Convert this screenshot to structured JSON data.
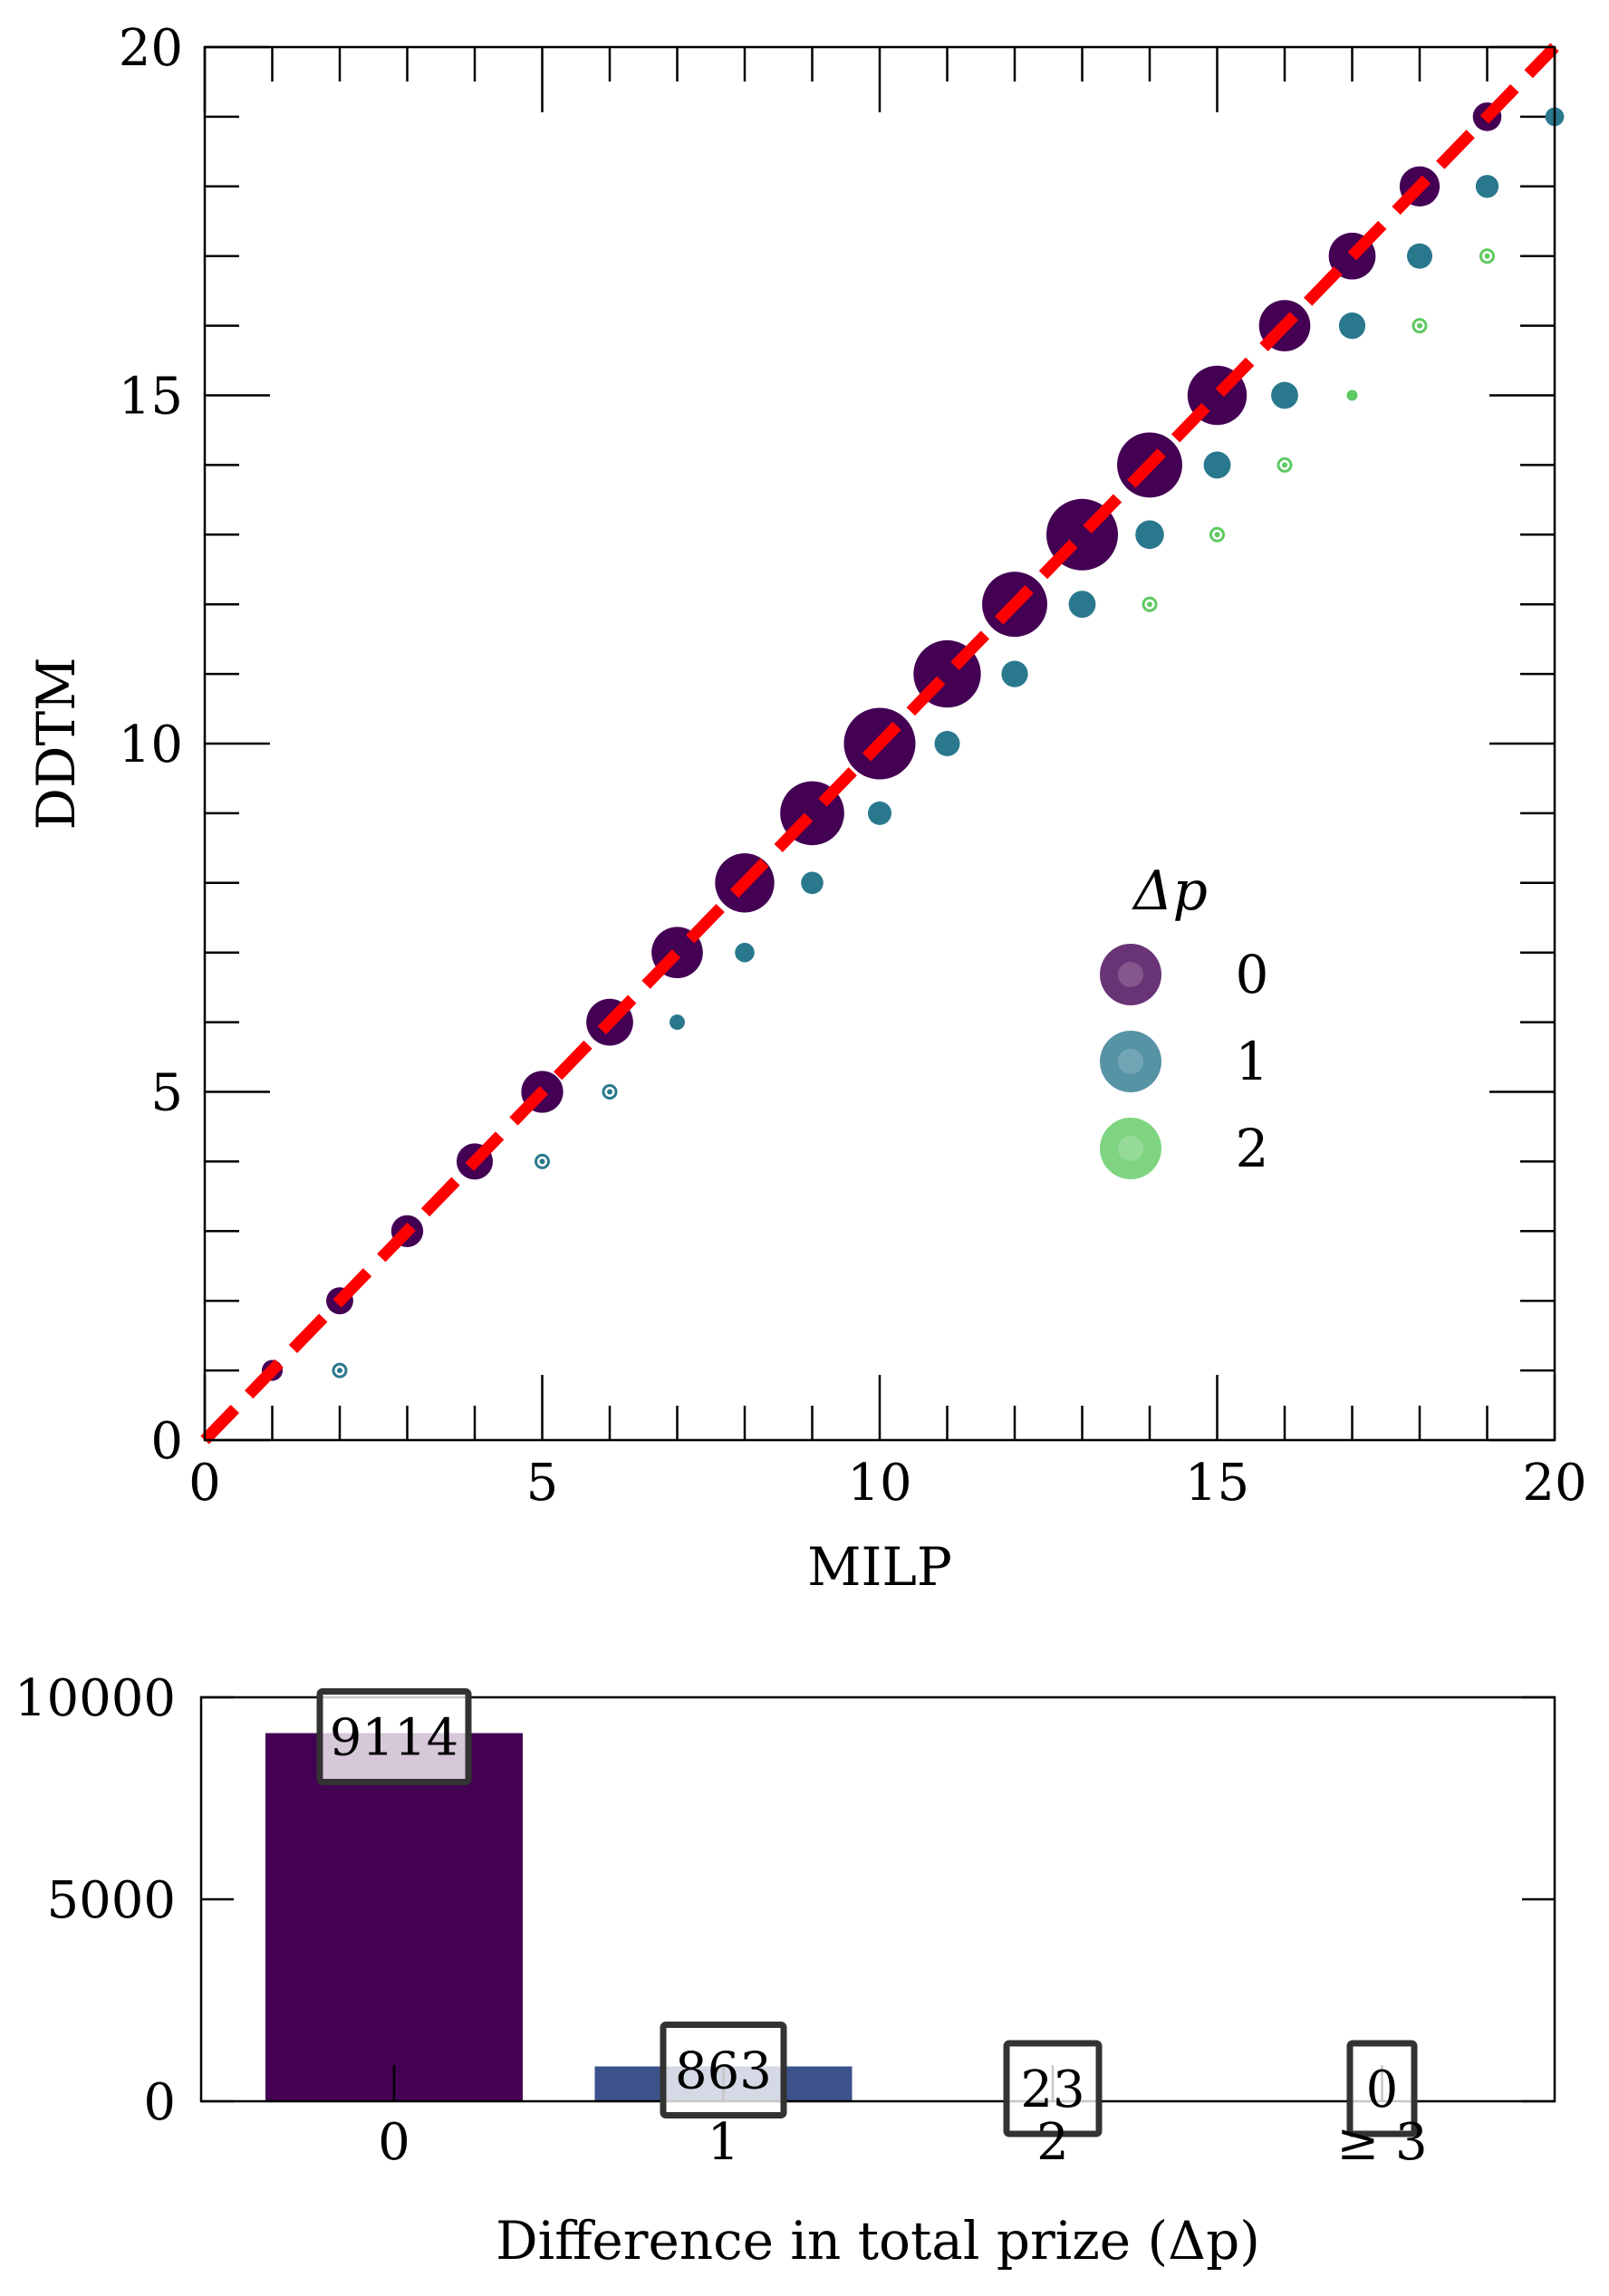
{
  "colors": {
    "dp0": "#440154",
    "dp1": "#2a788e",
    "dp2": "#5ec962",
    "bar1": "#3b528b",
    "identity_line": "#ff0000"
  },
  "chart_data": [
    {
      "type": "scatter",
      "xlabel": "MILP",
      "ylabel": "DDTM",
      "xlim": [
        0,
        20
      ],
      "ylim": [
        0,
        20
      ],
      "xticks": [
        0,
        5,
        10,
        15,
        20
      ],
      "yticks": [
        0,
        5,
        10,
        15,
        20
      ],
      "grid": false,
      "legend": {
        "title": "Δp",
        "placement": "center-right",
        "entries": [
          "0",
          "1",
          "2"
        ]
      },
      "reference_line": {
        "style": "dashed",
        "color": "#ff0000",
        "from": [
          0,
          0
        ],
        "to": [
          20,
          20
        ]
      },
      "series": [
        {
          "name": "0",
          "color": "#440154",
          "points": [
            [
              1,
              1,
              0.15
            ],
            [
              2,
              2,
              0.25
            ],
            [
              3,
              3,
              0.35
            ],
            [
              4,
              4,
              0.45
            ],
            [
              5,
              5,
              0.6
            ],
            [
              6,
              6,
              0.75
            ],
            [
              7,
              7,
              0.9
            ],
            [
              8,
              8,
              1.2
            ],
            [
              9,
              9,
              1.4
            ],
            [
              10,
              10,
              1.75
            ],
            [
              11,
              11,
              1.55
            ],
            [
              12,
              12,
              1.45
            ],
            [
              13,
              13,
              1.75
            ],
            [
              14,
              14,
              1.45
            ],
            [
              15,
              15,
              1.2
            ],
            [
              16,
              16,
              0.9
            ],
            [
              17,
              17,
              0.75
            ],
            [
              18,
              18,
              0.55
            ],
            [
              19,
              19,
              0.28
            ]
          ]
        },
        {
          "name": "1",
          "color": "#2a788e",
          "points": [
            [
              2,
              1,
              0.003
            ],
            [
              5,
              4,
              0.004
            ],
            [
              6,
              5,
              0.01
            ],
            [
              7,
              6,
              0.08
            ],
            [
              8,
              7,
              0.13
            ],
            [
              9,
              8,
              0.17
            ],
            [
              10,
              9,
              0.19
            ],
            [
              11,
              10,
              0.22
            ],
            [
              12,
              11,
              0.24
            ],
            [
              13,
              12,
              0.25
            ],
            [
              14,
              13,
              0.28
            ],
            [
              15,
              14,
              0.25
            ],
            [
              16,
              15,
              0.25
            ],
            [
              17,
              16,
              0.24
            ],
            [
              18,
              17,
              0.22
            ],
            [
              19,
              18,
              0.18
            ],
            [
              20,
              19,
              0.12
            ]
          ]
        },
        {
          "name": "2",
          "color": "#5ec962",
          "points": [
            [
              14,
              12,
              0.004
            ],
            [
              15,
              13,
              0.006
            ],
            [
              16,
              14,
              0.004
            ],
            [
              17,
              15,
              0.04
            ],
            [
              18,
              16,
              0.007
            ],
            [
              19,
              17,
              0.002
            ]
          ]
        }
      ]
    },
    {
      "type": "bar",
      "xlabel": "Difference in total prize (Δp)",
      "ylabel": "",
      "categories": [
        "0",
        "1",
        "2",
        "≥ 3"
      ],
      "values": [
        9114,
        863,
        23,
        0
      ],
      "value_labels": [
        "9114",
        "863",
        "23",
        "0"
      ],
      "ylim": [
        0,
        10000
      ],
      "yticks": [
        "0",
        "5000",
        "10000"
      ],
      "colors": [
        "#440154",
        "#3b528b",
        "#2a788e",
        "#5ec962"
      ]
    }
  ]
}
